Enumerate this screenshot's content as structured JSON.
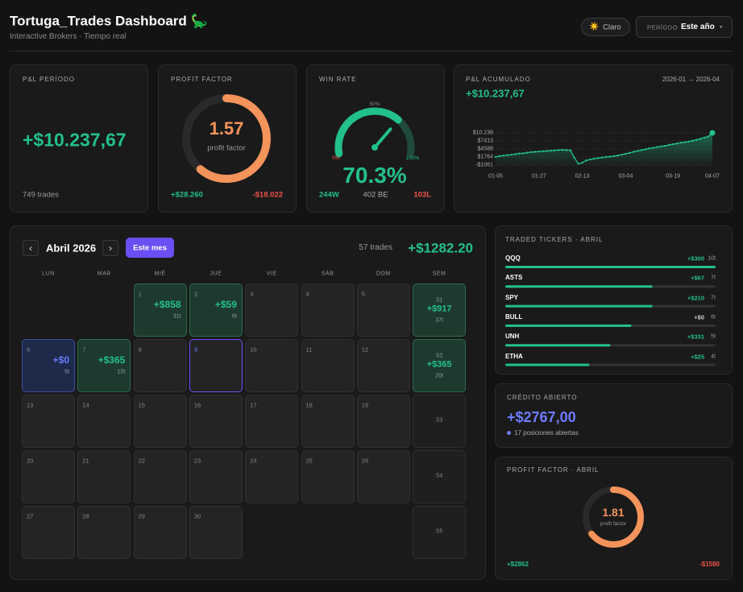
{
  "header": {
    "title": "Tortuga_Trades Dashboard 🦕",
    "subtitle": "Interactive Brokers · Tiempo real",
    "theme_icon": "☀️",
    "theme_label": "Claro",
    "period_label": "PERÍODO",
    "period_value": "Este año",
    "period_caret": "▾"
  },
  "cards": {
    "pnl": {
      "label": "P&L PERÍODO",
      "value": "+$10.237,67",
      "trades": "749 trades"
    },
    "profit_factor": {
      "label": "PROFIT FACTOR",
      "value": 1.57,
      "sublabel": "profit factor",
      "gross_profit": "+$28.260",
      "gross_loss": "-$18.022"
    },
    "win_rate": {
      "label": "WIN RATE",
      "value": 70.3,
      "value_label": "70.3%",
      "gauge_labels": [
        "0%",
        "50%",
        "100%"
      ],
      "wins": "244W",
      "breakeven": "402 BE",
      "losses": "103L"
    }
  },
  "chart_data": {
    "type": "line",
    "title": "P&L ACUMULADO",
    "subtitle": "2026-01 → 2026-04",
    "annotation": "+$10.237,67",
    "color": "#22c08a",
    "grid": true,
    "categories": [
      "01-05",
      null,
      null,
      null,
      null,
      null,
      null,
      null,
      null,
      null,
      null,
      "01-27",
      null,
      null,
      null,
      null,
      null,
      null,
      null,
      null,
      null,
      null,
      "02-13",
      null,
      null,
      null,
      null,
      null,
      null,
      null,
      null,
      null,
      null,
      "03-04",
      null,
      null,
      null,
      null,
      null,
      null,
      null,
      null,
      null,
      null,
      null,
      "03-19",
      null,
      null,
      null,
      null,
      null,
      null,
      null,
      null,
      null,
      "04-07"
    ],
    "values": [
      1800,
      2100,
      2300,
      2400,
      2600,
      2800,
      3000,
      3100,
      3300,
      3500,
      3600,
      3700,
      3800,
      3900,
      4000,
      4100,
      4200,
      4300,
      4200,
      4100,
      1500,
      -600,
      -200,
      600,
      900,
      1200,
      1400,
      1600,
      1800,
      1900,
      2100,
      2300,
      2600,
      2900,
      3200,
      3600,
      3900,
      4200,
      4500,
      4800,
      5000,
      5300,
      5500,
      5700,
      6000,
      6300,
      6500,
      6800,
      7000,
      7200,
      7500,
      7800,
      8200,
      8600,
      9000,
      10237.67
    ],
    "ylim": [
      -1061,
      10238
    ],
    "yticks": [
      {
        "value": 10238,
        "label": "$10.238"
      },
      {
        "value": 7413,
        "label": "$7413"
      },
      {
        "value": 4588,
        "label": "$4588"
      },
      {
        "value": 1764,
        "label": "$1764"
      },
      {
        "value": -1061,
        "label": "-$1061"
      }
    ]
  },
  "calendar": {
    "month": "Abril 2026",
    "prev": "‹",
    "next": "›",
    "this_month": "Este mes",
    "trades": "57 trades",
    "pnl": "+$1282.20",
    "today": 9,
    "weekdays": [
      "LUN",
      "MAR",
      "MIÉ",
      "JUE",
      "VIE",
      "SÁB",
      "DOM",
      "SEM"
    ],
    "weeks": [
      {
        "days": [
          null,
          null,
          {
            "day": 1,
            "pnl": "+$858",
            "trades": "31t"
          },
          {
            "day": 2,
            "pnl": "+$59",
            "trades": "6t"
          },
          {
            "day": 3
          },
          {
            "day": 4
          },
          {
            "day": 5
          }
        ],
        "label": "S1",
        "pnl": "+$917",
        "trades": "37t"
      },
      {
        "days": [
          {
            "day": 6,
            "pnl": "+$0",
            "trades": "5t"
          },
          {
            "day": 7,
            "pnl": "+$365",
            "trades": "15t"
          },
          {
            "day": 8
          },
          {
            "day": 9
          },
          {
            "day": 10
          },
          {
            "day": 11
          },
          {
            "day": 12
          }
        ],
        "label": "S2",
        "pnl": "+$365",
        "trades": "20t"
      },
      {
        "days": [
          {
            "day": 13
          },
          {
            "day": 14
          },
          {
            "day": 15
          },
          {
            "day": 16
          },
          {
            "day": 17
          },
          {
            "day": 18
          },
          {
            "day": 19
          }
        ],
        "label": "S3"
      },
      {
        "days": [
          {
            "day": 20
          },
          {
            "day": 21
          },
          {
            "day": 22
          },
          {
            "day": 23
          },
          {
            "day": 24
          },
          {
            "day": 25
          },
          {
            "day": 26
          }
        ],
        "label": "S4"
      },
      {
        "days": [
          {
            "day": 27
          },
          {
            "day": 28
          },
          {
            "day": 29
          },
          {
            "day": 30
          },
          null,
          null,
          null
        ],
        "label": "S5"
      }
    ]
  },
  "tickers": {
    "title": "TRADED TICKERS · ABRIL",
    "items": [
      {
        "name": "QQQ",
        "pnl": "+$300",
        "trades": 10,
        "trades_label": "10t"
      },
      {
        "name": "ASTS",
        "pnl": "+$67",
        "trades": 7,
        "trades_label": "7t"
      },
      {
        "name": "SPY",
        "pnl": "+$210",
        "trades": 7,
        "trades_label": "7t"
      },
      {
        "name": "BULL",
        "pnl": "+$0",
        "trades": 6,
        "trades_label": "6t"
      },
      {
        "name": "UNH",
        "pnl": "+$331",
        "trades": 5,
        "trades_label": "5t"
      },
      {
        "name": "ETHA",
        "pnl": "+$25",
        "trades": 4,
        "trades_label": "4t"
      }
    ]
  },
  "credit": {
    "label": "CRÉDITO ABIERTO",
    "value": "+$2767,00",
    "positions": "17 posiciones abiertas"
  },
  "profit_factor_month": {
    "label": "PROFIT FACTOR · ABRIL",
    "value": 1.81,
    "sublabel": "profit factor",
    "gross_profit": "+$2862",
    "gross_loss": "-$1580"
  }
}
